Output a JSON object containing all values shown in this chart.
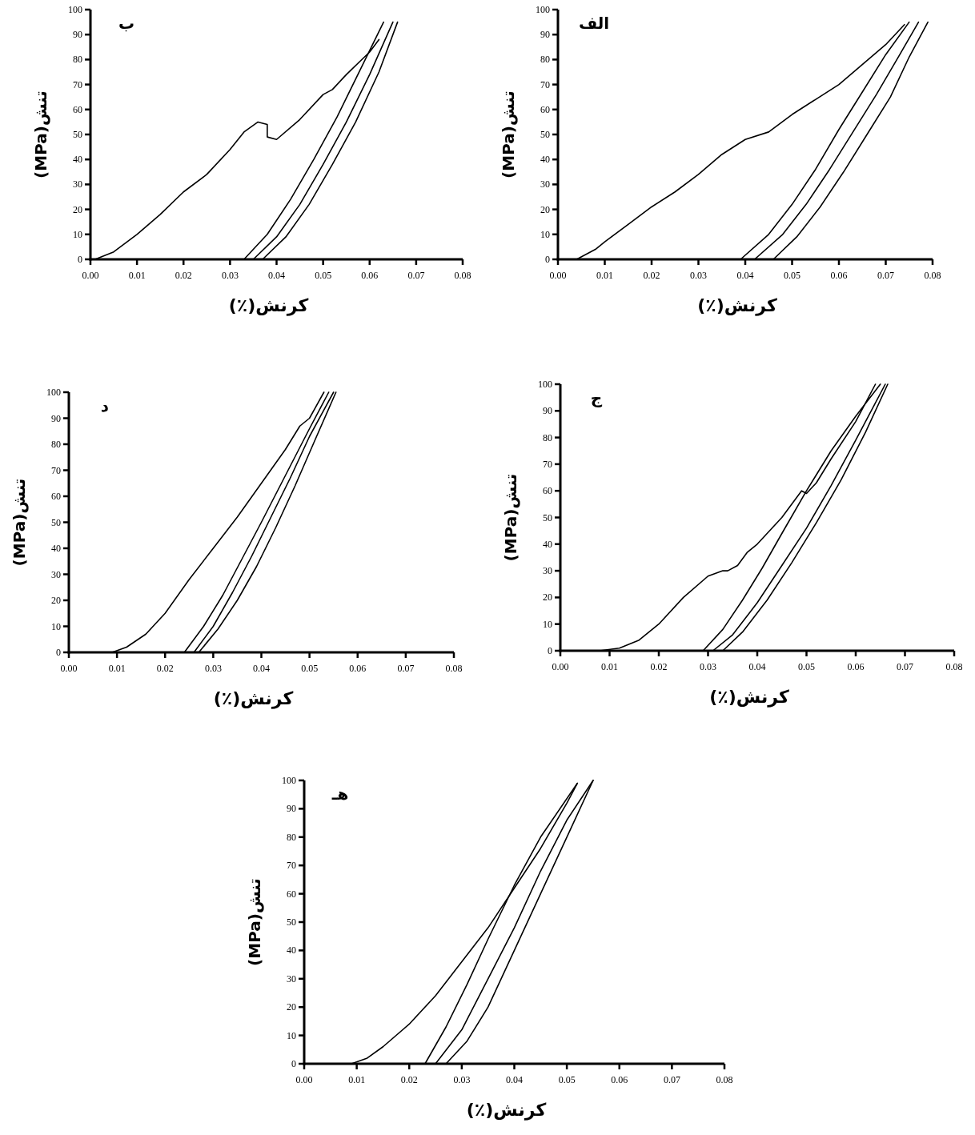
{
  "chart_data": [
    {
      "type": "line",
      "title": "الف",
      "xlabel": "کرنش(٪)",
      "ylabel": "تنش(MPa)",
      "xlim": [
        0,
        0.08
      ],
      "ylim": [
        0,
        100
      ],
      "xticks": [
        {
          "value": 0,
          "label": "0.00"
        },
        {
          "value": 0.01,
          "label": "0.01"
        },
        {
          "value": 0.02,
          "label": "0.02"
        },
        {
          "value": 0.03,
          "label": "0.03"
        },
        {
          "value": 0.04,
          "label": "0.04"
        },
        {
          "value": 0.05,
          "label": "0.05"
        },
        {
          "value": 0.06,
          "label": "0.06"
        },
        {
          "value": 0.07,
          "label": "0.07"
        },
        {
          "value": 0.08,
          "label": "0.08"
        }
      ],
      "yticks": [
        0,
        10,
        20,
        30,
        40,
        50,
        60,
        70,
        80,
        90,
        100
      ],
      "grid": false,
      "marker": "none",
      "line_style": "solid",
      "series": [
        {
          "color": "#000000",
          "x": [
            0.004,
            0.008,
            0.01,
            0.015,
            0.02,
            0.025,
            0.03,
            0.035,
            0.04,
            0.045,
            0.05,
            0.055,
            0.06,
            0.065,
            0.07,
            0.074
          ],
          "values": [
            0,
            4,
            7,
            14,
            21,
            27,
            34,
            42,
            48,
            51,
            58,
            64,
            70,
            78,
            86,
            94
          ]
        },
        {
          "color": "#000000",
          "x": [
            0.039,
            0.045,
            0.05,
            0.055,
            0.06,
            0.065,
            0.07,
            0.075
          ],
          "values": [
            0,
            10,
            22,
            36,
            52,
            67,
            82,
            95
          ]
        },
        {
          "color": "#000000",
          "x": [
            0.042,
            0.048,
            0.053,
            0.058,
            0.063,
            0.068,
            0.073,
            0.077
          ],
          "values": [
            0,
            10,
            22,
            36,
            51,
            66,
            82,
            95
          ]
        },
        {
          "color": "#000000",
          "x": [
            0.046,
            0.051,
            0.056,
            0.061,
            0.066,
            0.071,
            0.075,
            0.079
          ],
          "values": [
            0,
            9,
            21,
            35,
            50,
            65,
            81,
            95
          ]
        }
      ]
    },
    {
      "type": "line",
      "title": "ب",
      "xlabel": "کرنش(٪)",
      "ylabel": "تنش(MPa)",
      "xlim": [
        0,
        0.08
      ],
      "ylim": [
        0,
        100
      ],
      "xticks": [
        {
          "value": 0,
          "label": "0.00"
        },
        {
          "value": 0.01,
          "label": "0.01"
        },
        {
          "value": 0.02,
          "label": "0.02"
        },
        {
          "value": 0.03,
          "label": "0.03"
        },
        {
          "value": 0.04,
          "label": "0.04"
        },
        {
          "value": 0.05,
          "label": "0.05"
        },
        {
          "value": 0.06,
          "label": "0.06"
        },
        {
          "value": 0.07,
          "label": "0.07"
        },
        {
          "value": 0.08,
          "label": "0.08"
        }
      ],
      "yticks": [
        0,
        10,
        20,
        30,
        40,
        50,
        60,
        70,
        80,
        90,
        100
      ],
      "grid": false,
      "marker": "none",
      "line_style": "solid",
      "series": [
        {
          "color": "#000000",
          "x": [
            0.001,
            0.005,
            0.01,
            0.015,
            0.02,
            0.025,
            0.03,
            0.033,
            0.036,
            0.038,
            0.038,
            0.04,
            0.045,
            0.05,
            0.052,
            0.055,
            0.06,
            0.062
          ],
          "values": [
            0,
            3,
            10,
            18,
            27,
            34,
            44,
            51,
            55,
            54,
            49,
            48,
            56,
            66,
            68,
            74,
            83,
            88
          ]
        },
        {
          "color": "#000000",
          "x": [
            0.033,
            0.038,
            0.043,
            0.048,
            0.053,
            0.058,
            0.063
          ],
          "values": [
            0,
            10,
            24,
            40,
            57,
            76,
            95
          ]
        },
        {
          "color": "#000000",
          "x": [
            0.035,
            0.04,
            0.045,
            0.05,
            0.055,
            0.06,
            0.065
          ],
          "values": [
            0,
            9,
            22,
            38,
            55,
            74,
            95
          ]
        },
        {
          "color": "#000000",
          "x": [
            0.037,
            0.042,
            0.047,
            0.052,
            0.057,
            0.062,
            0.066
          ],
          "values": [
            0,
            9,
            22,
            38,
            55,
            75,
            95
          ]
        }
      ]
    },
    {
      "type": "line",
      "title": "ج",
      "xlabel": "کرنش(٪)",
      "ylabel": "تنش(MPa)",
      "xlim": [
        0,
        0.08
      ],
      "ylim": [
        0,
        100
      ],
      "xticks": [
        {
          "value": 0,
          "label": "0.00"
        },
        {
          "value": 0.01,
          "label": "0.01"
        },
        {
          "value": 0.02,
          "label": "0.02"
        },
        {
          "value": 0.03,
          "label": "0.03"
        },
        {
          "value": 0.04,
          "label": "0.04"
        },
        {
          "value": 0.05,
          "label": "0.05"
        },
        {
          "value": 0.06,
          "label": "0.06"
        },
        {
          "value": 0.07,
          "label": "0.07"
        },
        {
          "value": 0.08,
          "label": "0.08"
        }
      ],
      "yticks": [
        0,
        10,
        20,
        30,
        40,
        50,
        60,
        70,
        80,
        90,
        100
      ],
      "grid": false,
      "marker": "none",
      "line_style": "solid",
      "series": [
        {
          "color": "#000000",
          "x": [
            0.008,
            0.012,
            0.016,
            0.02,
            0.025,
            0.03,
            0.033,
            0.034,
            0.036,
            0.038,
            0.04,
            0.045,
            0.049,
            0.05,
            0.052,
            0.055,
            0.06,
            0.064
          ],
          "values": [
            0,
            1,
            4,
            10,
            20,
            28,
            30,
            30,
            32,
            37,
            40,
            50,
            60,
            59,
            63,
            72,
            86,
            100
          ]
        },
        {
          "color": "#000000",
          "x": [
            0.029,
            0.033,
            0.037,
            0.041,
            0.045,
            0.05,
            0.055,
            0.06,
            0.065
          ],
          "values": [
            0,
            8,
            19,
            31,
            44,
            60,
            75,
            88,
            100
          ]
        },
        {
          "color": "#000000",
          "x": [
            0.031,
            0.035,
            0.04,
            0.045,
            0.05,
            0.055,
            0.06,
            0.066
          ],
          "values": [
            0,
            6,
            18,
            32,
            46,
            62,
            79,
            100
          ]
        },
        {
          "color": "#000000",
          "x": [
            0.033,
            0.037,
            0.042,
            0.047,
            0.052,
            0.057,
            0.062,
            0.0665
          ],
          "values": [
            0,
            7,
            19,
            33,
            48,
            64,
            82,
            100
          ]
        }
      ]
    },
    {
      "type": "line",
      "title": "د",
      "xlabel": "کرنش(٪)",
      "ylabel": "تنش(MPa)",
      "xlim": [
        0,
        0.08
      ],
      "ylim": [
        0,
        100
      ],
      "xticks": [
        {
          "value": 0,
          "label": "0.00"
        },
        {
          "value": 0.01,
          "label": "0.01"
        },
        {
          "value": 0.02,
          "label": "0.02"
        },
        {
          "value": 0.03,
          "label": "0.03"
        },
        {
          "value": 0.04,
          "label": "0.04"
        },
        {
          "value": 0.05,
          "label": "0.05"
        },
        {
          "value": 0.06,
          "label": "0.06"
        },
        {
          "value": 0.07,
          "label": "0.07"
        },
        {
          "value": 0.08,
          "label": "0.08"
        }
      ],
      "yticks": [
        0,
        10,
        20,
        30,
        40,
        50,
        60,
        70,
        80,
        90,
        100
      ],
      "grid": false,
      "marker": "none",
      "line_style": "solid",
      "series": [
        {
          "color": "#000000",
          "x": [
            0.009,
            0.012,
            0.016,
            0.02,
            0.025,
            0.03,
            0.035,
            0.04,
            0.045,
            0.048,
            0.05,
            0.053
          ],
          "values": [
            0,
            2,
            7,
            15,
            28,
            40,
            52,
            65,
            78,
            87,
            90,
            100
          ]
        },
        {
          "color": "#000000",
          "x": [
            0.024,
            0.028,
            0.032,
            0.036,
            0.04,
            0.045,
            0.05,
            0.054
          ],
          "values": [
            0,
            10,
            22,
            36,
            50,
            68,
            86,
            100
          ]
        },
        {
          "color": "#000000",
          "x": [
            0.026,
            0.03,
            0.034,
            0.038,
            0.042,
            0.046,
            0.05,
            0.055
          ],
          "values": [
            0,
            10,
            23,
            37,
            52,
            67,
            83,
            100
          ]
        },
        {
          "color": "#000000",
          "x": [
            0.027,
            0.031,
            0.035,
            0.039,
            0.043,
            0.047,
            0.051,
            0.0555
          ],
          "values": [
            0,
            9,
            20,
            33,
            48,
            64,
            81,
            100
          ]
        }
      ]
    },
    {
      "type": "line",
      "title": "هـ",
      "xlabel": "کرنش(٪)",
      "ylabel": "تنش(MPa)",
      "xlim": [
        0,
        0.08
      ],
      "ylim": [
        0,
        100
      ],
      "xticks": [
        {
          "value": 0,
          "label": "0.00"
        },
        {
          "value": 0.01,
          "label": "0.01"
        },
        {
          "value": 0.02,
          "label": "0.02"
        },
        {
          "value": 0.03,
          "label": "0.03"
        },
        {
          "value": 0.04,
          "label": "0.04"
        },
        {
          "value": 0.05,
          "label": "0.05"
        },
        {
          "value": 0.06,
          "label": "0.06"
        },
        {
          "value": 0.07,
          "label": "0.07"
        },
        {
          "value": 0.08,
          "label": "0.08"
        }
      ],
      "yticks": [
        0,
        10,
        20,
        30,
        40,
        50,
        60,
        70,
        80,
        90,
        100
      ],
      "grid": false,
      "marker": "none",
      "line_style": "solid",
      "series": [
        {
          "color": "#000000",
          "x": [
            0.009,
            0.012,
            0.015,
            0.02,
            0.025,
            0.03,
            0.035,
            0.04,
            0.045,
            0.05,
            0.052
          ],
          "values": [
            0,
            2,
            6,
            14,
            24,
            36,
            48,
            62,
            76,
            92,
            99
          ]
        },
        {
          "color": "#000000",
          "x": [
            0.023,
            0.027,
            0.031,
            0.035,
            0.04,
            0.045,
            0.052
          ],
          "values": [
            0,
            13,
            28,
            44,
            63,
            80,
            99
          ]
        },
        {
          "color": "#000000",
          "x": [
            0.025,
            0.03,
            0.035,
            0.04,
            0.045,
            0.05,
            0.055
          ],
          "values": [
            0,
            12,
            30,
            48,
            68,
            86,
            100
          ]
        },
        {
          "color": "#000000",
          "x": [
            0.027,
            0.031,
            0.035,
            0.04,
            0.045,
            0.05,
            0.055
          ],
          "values": [
            0,
            8,
            20,
            40,
            60,
            80,
            100
          ]
        }
      ]
    }
  ]
}
